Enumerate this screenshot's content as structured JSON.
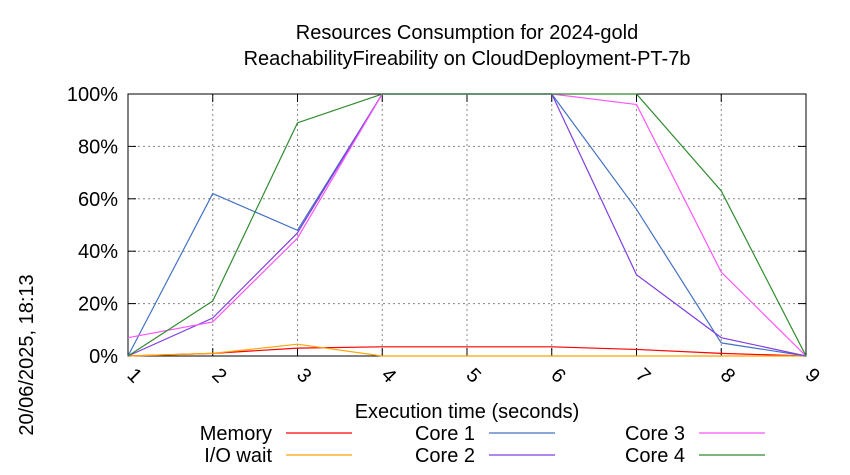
{
  "chart_data": {
    "type": "line",
    "title": [
      "Resources Consumption for 2024-gold",
      "ReachabilityFireability on CloudDeployment-PT-7b"
    ],
    "xlabel": "Execution time (seconds)",
    "ylabel": "",
    "side_label": "20/06/2025, 18:13",
    "x": [
      1,
      2,
      3,
      4,
      5,
      6,
      7,
      8,
      9
    ],
    "xlim": [
      1,
      9
    ],
    "ylim": [
      0,
      100
    ],
    "y_ticks": [
      "0%",
      "20%",
      "40%",
      "60%",
      "80%",
      "100%"
    ],
    "x_ticks": [
      "1",
      "2",
      "3",
      "4",
      "5",
      "6",
      "7",
      "8",
      "9"
    ],
    "grid": true,
    "legend_position": "bottom",
    "series": [
      {
        "name": "Memory",
        "color": "#ff0000",
        "values": [
          0,
          1,
          3,
          3.5,
          3.5,
          3.5,
          2.5,
          1,
          0
        ]
      },
      {
        "name": "I/O wait",
        "color": "#ffa500",
        "values": [
          0,
          1,
          4.5,
          0,
          0,
          0,
          0,
          0,
          0
        ]
      },
      {
        "name": "Core 1",
        "color": "#4472c4",
        "values": [
          0,
          62,
          48,
          100,
          100,
          100,
          56,
          5,
          0
        ]
      },
      {
        "name": "Core 2",
        "color": "#7f3fdf",
        "values": [
          0,
          14.5,
          47,
          100,
          100,
          100,
          31,
          7,
          0
        ]
      },
      {
        "name": "Core 3",
        "color": "#ff55ff",
        "values": [
          7,
          13,
          45,
          100,
          100,
          100,
          96,
          32,
          0
        ]
      },
      {
        "name": "Core 4",
        "color": "#2e8b2e",
        "values": [
          0,
          21,
          89,
          100,
          100,
          100,
          100,
          63,
          0
        ]
      }
    ]
  }
}
